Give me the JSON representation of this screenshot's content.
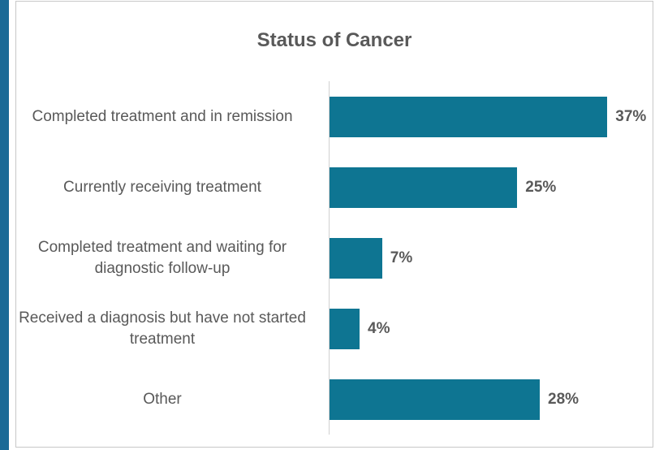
{
  "chart_data": {
    "type": "bar",
    "orientation": "horizontal",
    "title": "Status of Cancer",
    "categories": [
      "Completed treatment and in remission",
      "Currently receiving treatment",
      "Completed treatment and waiting for diagnostic follow-up",
      "Received a diagnosis but have not started treatment",
      "Other"
    ],
    "values": [
      37,
      25,
      7,
      4,
      28
    ],
    "value_labels": [
      "37%",
      "25%",
      "7%",
      "4%",
      "28%"
    ],
    "color": "#0e7592",
    "xlim": [
      0,
      40
    ]
  }
}
